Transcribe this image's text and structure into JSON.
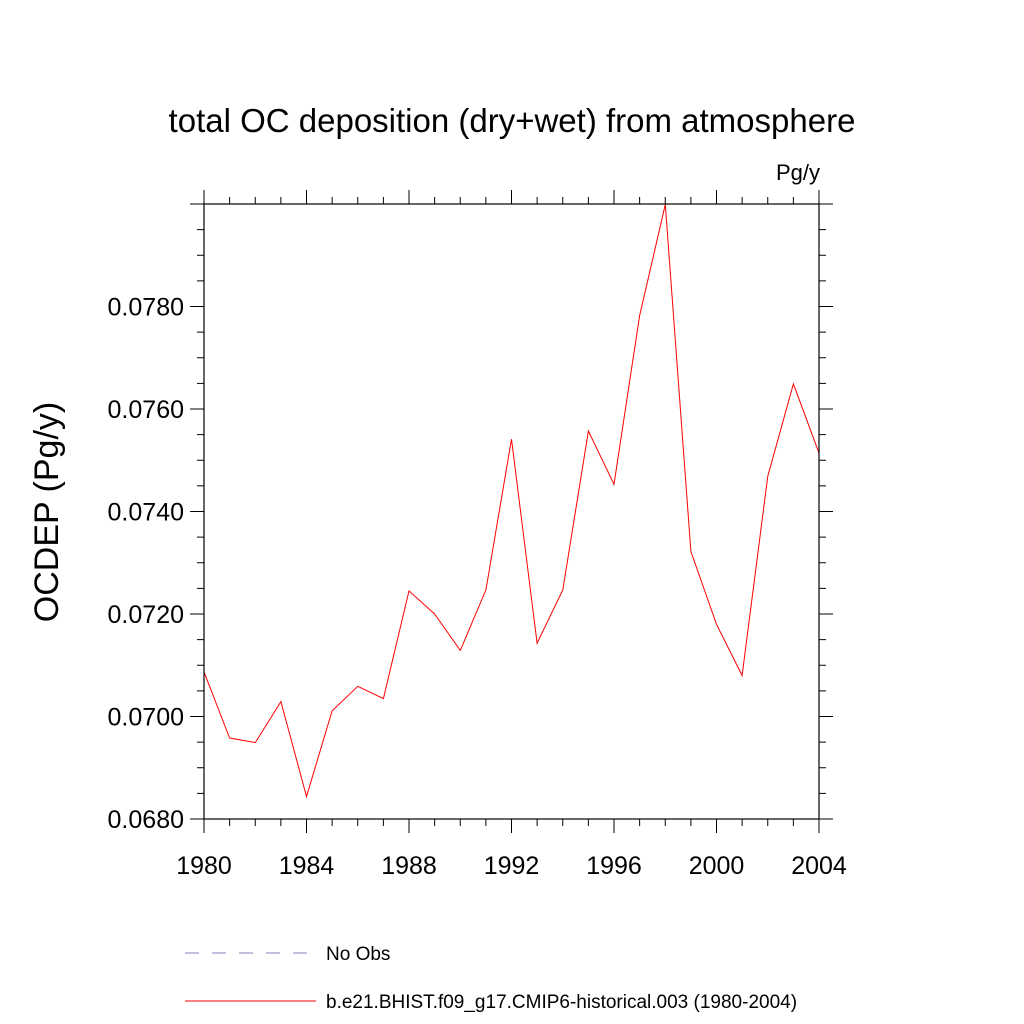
{
  "chart_data": {
    "type": "line",
    "title": "total OC deposition (dry+wet) from atmosphere",
    "units": "Pg/y",
    "ylabel": "OCDEP  (Pg/y)",
    "xlabel": "",
    "xlim": [
      1980,
      2004
    ],
    "ylim": [
      0.068,
      0.08
    ],
    "x_ticks": [
      "1980",
      "1984",
      "1988",
      "1992",
      "1996",
      "2000",
      "2004"
    ],
    "y_ticks": [
      "0.0680",
      "0.0700",
      "0.0720",
      "0.0740",
      "0.0760",
      "0.0780"
    ],
    "grid": false,
    "legend_position": "bottom",
    "legend": [
      {
        "label": "No Obs",
        "color": "#8080c0",
        "dash": "dashed"
      },
      {
        "label": "b.e21.BHIST.f09_g17.CMIP6-historical.003 (1980-2004)",
        "color": "#ff0000",
        "dash": "solid"
      }
    ],
    "series": [
      {
        "name": "b.e21.BHIST.f09_g17.CMIP6-historical.003 (1980-2004)",
        "color": "#ff0000",
        "x": [
          1980,
          1981,
          1982,
          1983,
          1984,
          1985,
          1986,
          1987,
          1988,
          1989,
          1990,
          1991,
          1992,
          1993,
          1994,
          1995,
          1996,
          1997,
          1998,
          1999,
          2000,
          2001,
          2002,
          2003,
          2004
        ],
        "y": [
          0.07087,
          0.06958,
          0.06949,
          0.07029,
          0.06844,
          0.07011,
          0.07059,
          0.07035,
          0.07245,
          0.072,
          0.07129,
          0.07247,
          0.07541,
          0.07143,
          0.07247,
          0.07557,
          0.07453,
          0.07782,
          0.07999,
          0.07322,
          0.0718,
          0.0708,
          0.07469,
          0.07649,
          0.07514
        ]
      }
    ]
  }
}
